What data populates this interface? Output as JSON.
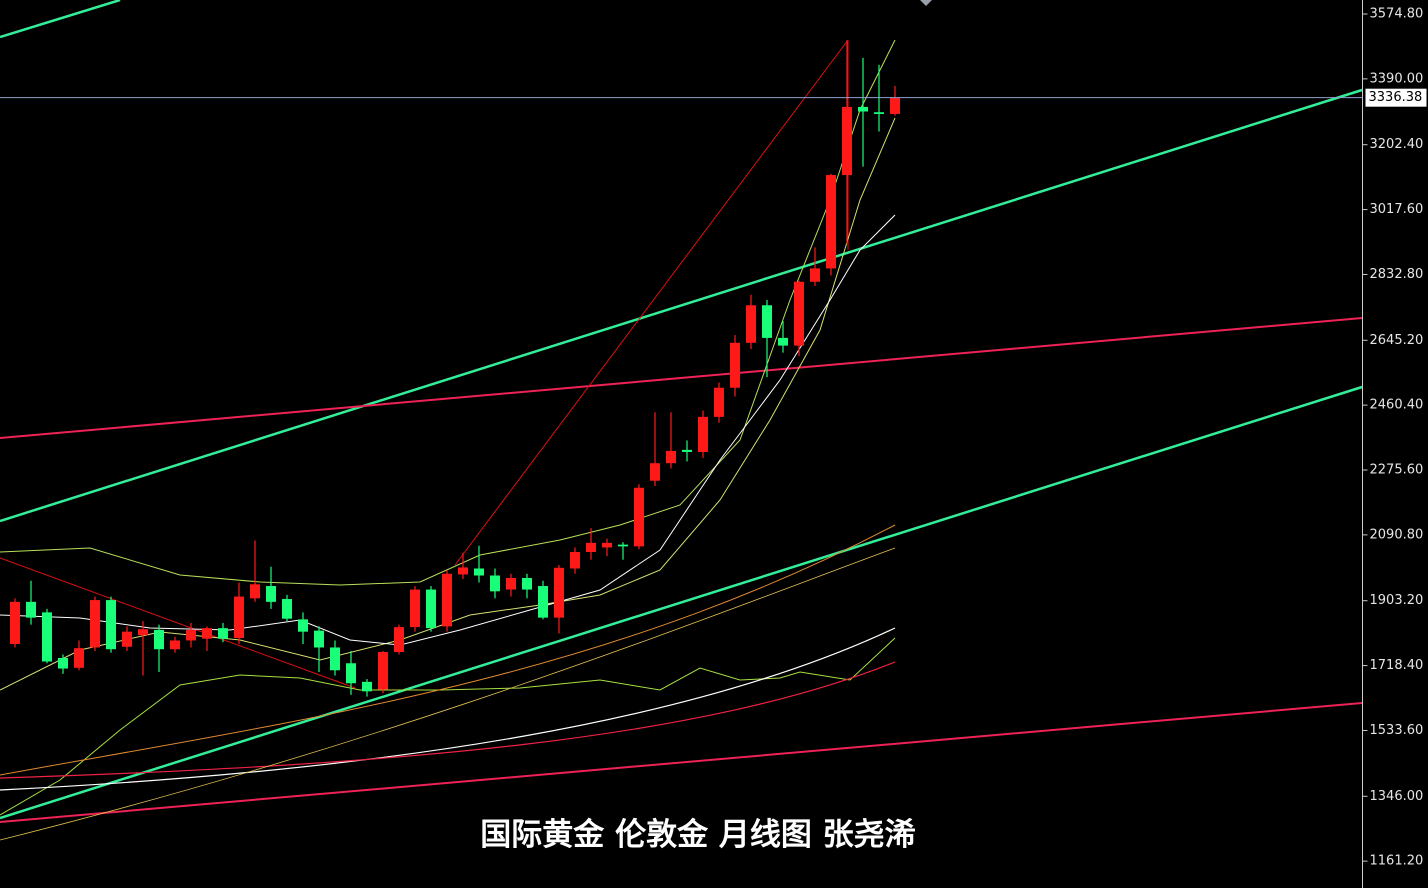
{
  "chart_data": {
    "type": "candlestick",
    "title": "国际黄金 伦敦金  月线图 张尧浠",
    "open": [
      1780,
      1900,
      1870,
      1740,
      1712,
      1770,
      1905,
      1772,
      1805,
      1820,
      1765,
      1790,
      1795,
      1825,
      1797,
      1910,
      1945,
      1908,
      1850,
      1818,
      1770,
      1725,
      1672,
      1650,
      1757,
      1828,
      1935,
      1830,
      1978,
      1995,
      1975,
      1935,
      1968,
      1945,
      1855,
      1995,
      2042,
      2055,
      2063,
      2058,
      2245,
      2295,
      2333,
      2327,
      2427,
      2510,
      2638,
      2745,
      2652,
      2630,
      2812,
      2850,
      3116,
      3310,
      3295,
      3290
    ],
    "high": [
      1910,
      1960,
      1880,
      1750,
      1790,
      1915,
      1915,
      1830,
      1845,
      1835,
      1800,
      1840,
      1830,
      1840,
      1955,
      2075,
      2000,
      1920,
      1870,
      1830,
      1790,
      1760,
      1680,
      1760,
      1835,
      1945,
      1945,
      1990,
      2040,
      2060,
      1995,
      1980,
      1980,
      1960,
      2005,
      2055,
      2110,
      2080,
      2070,
      2235,
      2440,
      2440,
      2360,
      2445,
      2525,
      2660,
      2775,
      2760,
      2700,
      2815,
      2910,
      3120,
      3500,
      3450,
      3430,
      3370
    ],
    "low": [
      1770,
      1835,
      1725,
      1695,
      1705,
      1760,
      1755,
      1760,
      1690,
      1700,
      1755,
      1770,
      1760,
      1785,
      1780,
      1900,
      1880,
      1845,
      1780,
      1700,
      1690,
      1635,
      1630,
      1640,
      1750,
      1815,
      1815,
      1815,
      1965,
      1955,
      1910,
      1915,
      1910,
      1850,
      1810,
      1980,
      2020,
      2030,
      2020,
      2050,
      2230,
      2280,
      2300,
      2310,
      2410,
      2485,
      2620,
      2540,
      2610,
      2600,
      2800,
      2830,
      2920,
      3140,
      3240,
      3285
    ],
    "close": [
      1900,
      1855,
      1730,
      1710,
      1768,
      1905,
      1765,
      1815,
      1822,
      1765,
      1790,
      1820,
      1825,
      1795,
      1915,
      1950,
      1900,
      1852,
      1815,
      1770,
      1705,
      1668,
      1645,
      1757,
      1828,
      1935,
      1825,
      1980,
      1998,
      1975,
      1930,
      1968,
      1935,
      1855,
      1997,
      2042,
      2068,
      2068,
      2058,
      2225,
      2295,
      2330,
      2327,
      2427,
      2510,
      2638,
      2745,
      2652,
      2630,
      2812,
      2850,
      3116,
      3310,
      3297,
      3290,
      3336.38
    ],
    "up_color": "#ff1a1a",
    "down_color": "#1aff7a",
    "ylim": [
      1084.7,
      3614.7
    ],
    "yticks": [
      {
        "value": 1161.2,
        "label": "1161.20"
      },
      {
        "value": 1346,
        "label": "1346.00"
      },
      {
        "value": 1533.6,
        "label": "1533.60"
      },
      {
        "value": 1718.4,
        "label": "1718.40"
      },
      {
        "value": 1903.2,
        "label": "1903.20"
      },
      {
        "value": 2090.8,
        "label": "2090.80"
      },
      {
        "value": 2275.6,
        "label": "2275.60"
      },
      {
        "value": 2460.4,
        "label": "2460.40"
      },
      {
        "value": 2645.2,
        "label": "2645.20"
      },
      {
        "value": 2832.8,
        "label": "2832.80"
      },
      {
        "value": 3017.6,
        "label": "3017.60"
      },
      {
        "value": 3202.4,
        "label": "3202.40"
      },
      {
        "value": 3390,
        "label": "3390.00"
      },
      {
        "value": 3574.8,
        "label": "3574.80"
      }
    ],
    "last_price": 3336.38,
    "last_price_color": "#8fa3c8"
  }
}
